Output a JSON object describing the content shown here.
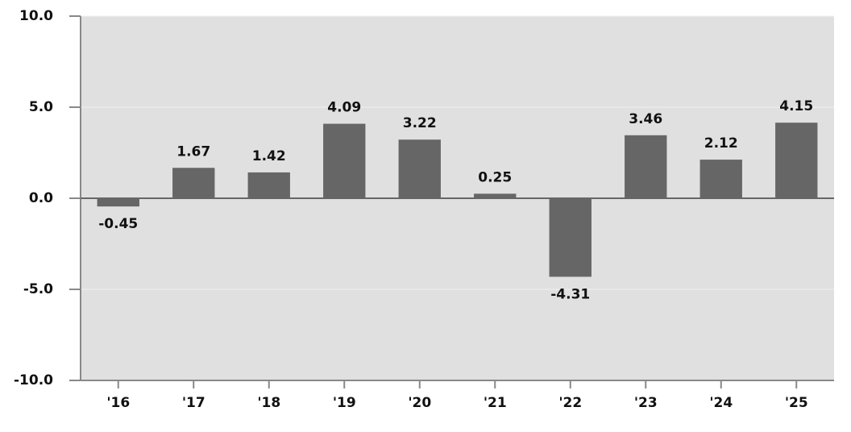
{
  "chart_data": {
    "type": "bar",
    "categories": [
      "'16",
      "'17",
      "'18",
      "'19",
      "'20",
      "'21",
      "'22",
      "'23",
      "'24",
      "'25"
    ],
    "values": [
      -0.45,
      1.67,
      1.42,
      4.09,
      3.22,
      0.25,
      -4.31,
      3.46,
      2.12,
      4.15
    ],
    "color": "#666666",
    "ylim": [
      -10,
      10
    ],
    "yticks": [
      {
        "value": -10,
        "label": "-10.0"
      },
      {
        "value": -5,
        "label": "-5.0"
      },
      {
        "value": 0,
        "label": "0.0"
      },
      {
        "value": 5,
        "label": "5.0"
      },
      {
        "value": 10,
        "label": "10.0"
      }
    ],
    "grid": true
  }
}
